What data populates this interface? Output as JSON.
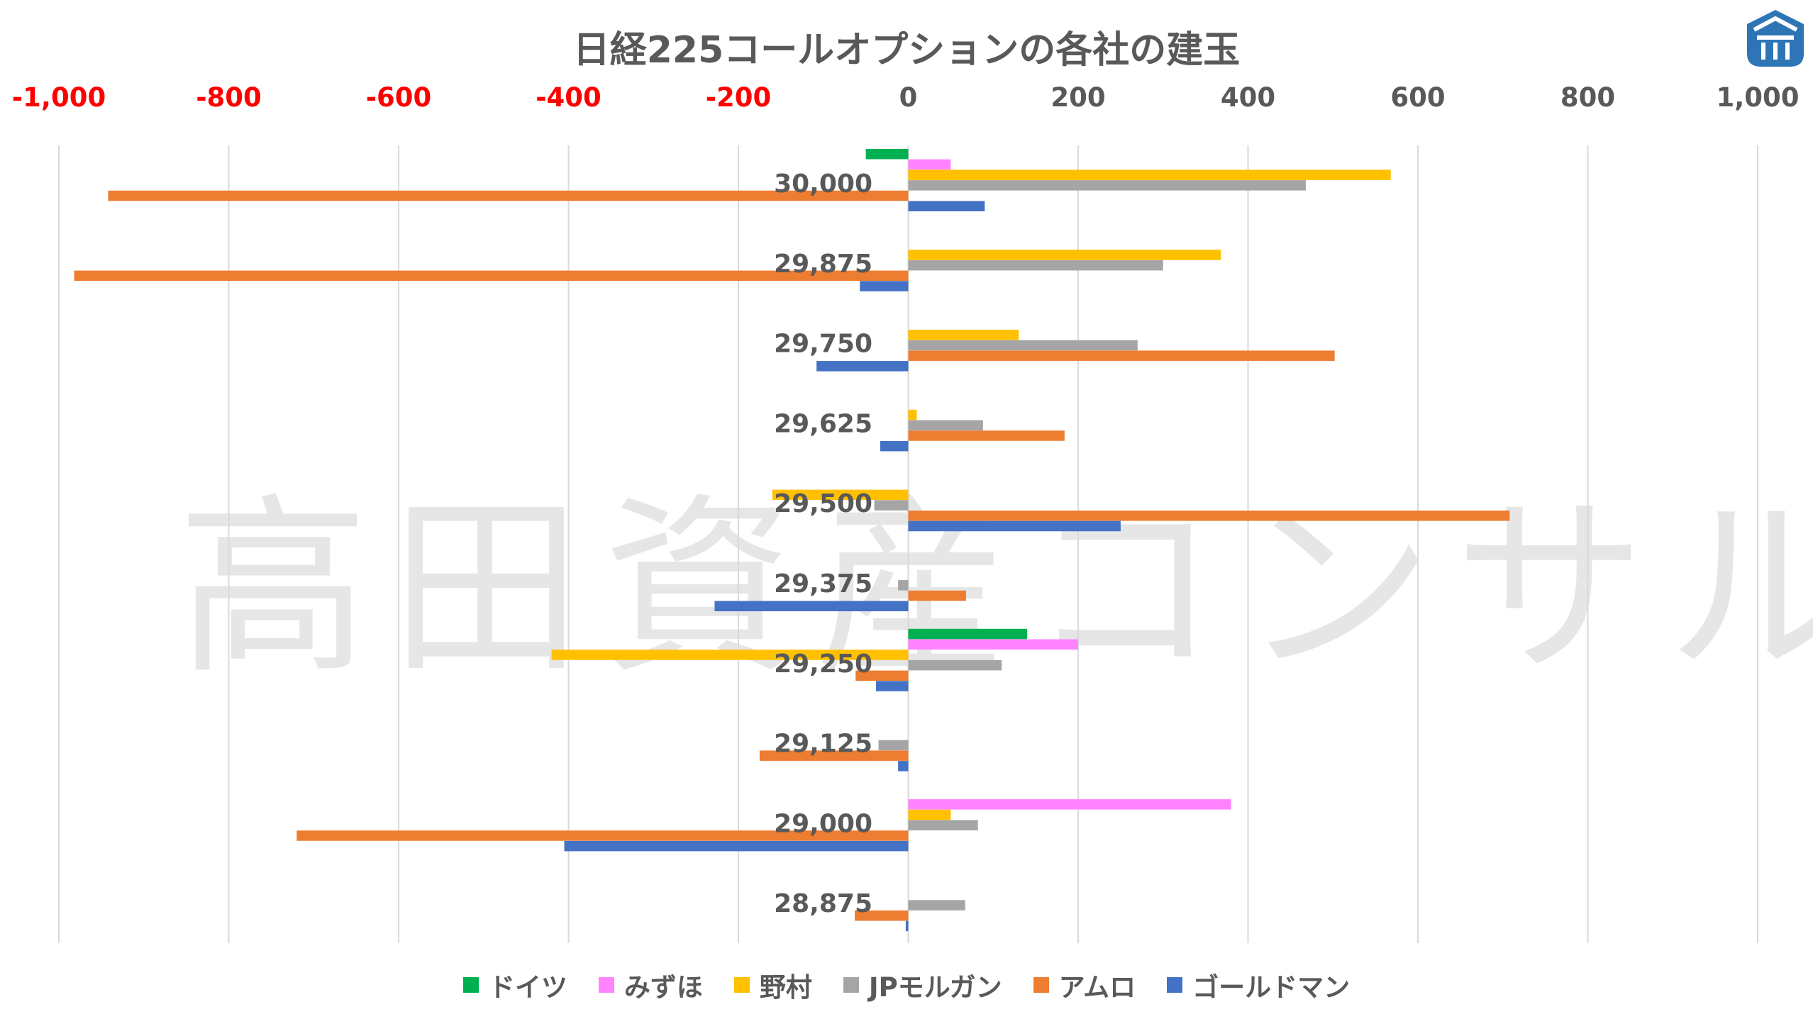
{
  "title": "日経225コールオプションの各社の建玉",
  "watermark": "高田資産コンサル",
  "chart_data": {
    "type": "bar",
    "orientation": "horizontal",
    "title": "日経225コールオプションの各社の建玉",
    "categories": [
      "30,000",
      "29,875",
      "29,750",
      "29,625",
      "29,500",
      "29,375",
      "29,250",
      "29,125",
      "29,000",
      "28,875"
    ],
    "xlim": [
      -1000,
      1000
    ],
    "x_ticks": [
      "-1,000",
      "-800",
      "-600",
      "-400",
      "-200",
      "0",
      "200",
      "400",
      "600",
      "800",
      "1,000"
    ],
    "negative_tick_color": "#ff0000",
    "positive_tick_color": "#595959",
    "axis_position": "top",
    "grid": "vertical",
    "legend_position": "bottom",
    "series": [
      {
        "name": "ドイツ",
        "color": "#00b050",
        "values": [
          -50,
          0,
          0,
          0,
          0,
          0,
          140,
          0,
          0,
          0
        ]
      },
      {
        "name": "みずほ",
        "color": "#ff83ff",
        "values": [
          50,
          0,
          0,
          0,
          0,
          0,
          200,
          0,
          380,
          0
        ]
      },
      {
        "name": "野村",
        "color": "#ffc000",
        "values": [
          568,
          368,
          130,
          10,
          -160,
          0,
          -420,
          0,
          50,
          0
        ]
      },
      {
        "name": "JPモルガン",
        "color": "#a5a5a5",
        "values": [
          468,
          300,
          270,
          88,
          -40,
          -12,
          110,
          -35,
          82,
          67
        ]
      },
      {
        "name": "アムロ",
        "color": "#ed7d31",
        "values": [
          -942,
          -982,
          502,
          184,
          708,
          68,
          -62,
          -175,
          -720,
          -63
        ]
      },
      {
        "name": "ゴールドマン",
        "color": "#4472c4",
        "values": [
          90,
          -57,
          -108,
          -33,
          250,
          -228,
          -38,
          -12,
          -405,
          -3
        ]
      }
    ]
  },
  "logo": {
    "icon": "shield-house-logo",
    "color": "#2e75b6"
  }
}
